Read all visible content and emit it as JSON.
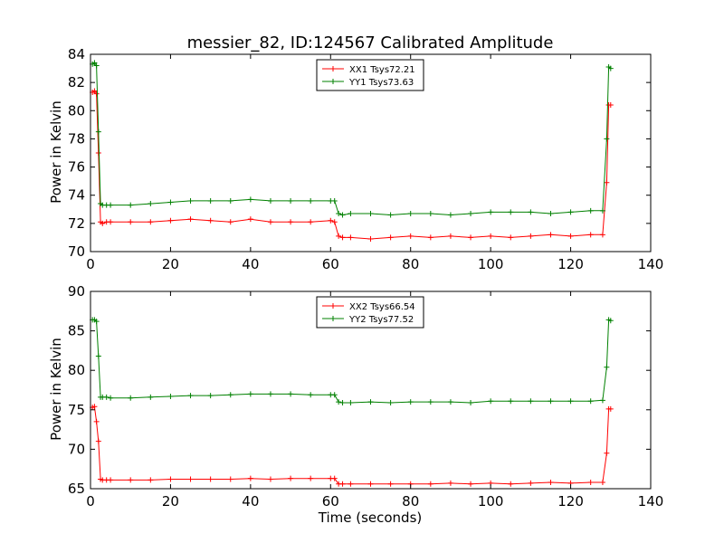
{
  "chart_data": [
    {
      "type": "line",
      "title": "messier_82, ID:124567 Calibrated Amplitude",
      "xlabel": "",
      "ylabel": "Power in Kelvin",
      "xlim": [
        0,
        140
      ],
      "ylim": [
        70,
        84
      ],
      "xticks": [
        0,
        20,
        40,
        60,
        80,
        100,
        120,
        140
      ],
      "yticks": [
        70,
        72,
        74,
        76,
        78,
        80,
        82,
        84
      ],
      "legend_position": "top-center",
      "series": [
        {
          "name": "XX1 Tsys72.21",
          "color": "#ff0000",
          "x": [
            0.5,
            1,
            1.5,
            2,
            2.5,
            3,
            4,
            5,
            10,
            15,
            20,
            25,
            30,
            35,
            40,
            45,
            50,
            55,
            60,
            61,
            62,
            63,
            65,
            70,
            75,
            80,
            85,
            90,
            95,
            100,
            105,
            110,
            115,
            120,
            125,
            128,
            129,
            129.5,
            130
          ],
          "y": [
            81.3,
            81.4,
            81.2,
            77.0,
            72.1,
            72.0,
            72.1,
            72.1,
            72.1,
            72.1,
            72.2,
            72.3,
            72.2,
            72.1,
            72.3,
            72.1,
            72.1,
            72.1,
            72.2,
            72.1,
            71.1,
            71.0,
            71.0,
            70.9,
            71.0,
            71.1,
            71.0,
            71.1,
            71.0,
            71.1,
            71.0,
            71.1,
            71.2,
            71.1,
            71.2,
            71.2,
            74.9,
            80.4,
            80.4
          ]
        },
        {
          "name": "YY1 Tsys73.63",
          "color": "#008000",
          "x": [
            0.5,
            1,
            1.5,
            2,
            2.5,
            3,
            4,
            5,
            10,
            15,
            20,
            25,
            30,
            35,
            40,
            45,
            50,
            55,
            60,
            61,
            62,
            63,
            65,
            70,
            75,
            80,
            85,
            90,
            95,
            100,
            105,
            110,
            115,
            120,
            125,
            128,
            129,
            129.5,
            130
          ],
          "y": [
            83.3,
            83.4,
            83.2,
            78.5,
            73.4,
            73.3,
            73.3,
            73.3,
            73.3,
            73.4,
            73.5,
            73.6,
            73.6,
            73.6,
            73.7,
            73.6,
            73.6,
            73.6,
            73.6,
            73.6,
            72.7,
            72.6,
            72.7,
            72.7,
            72.6,
            72.7,
            72.7,
            72.6,
            72.7,
            72.8,
            72.8,
            72.8,
            72.7,
            72.8,
            72.9,
            72.9,
            78.0,
            83.1,
            83.0
          ]
        }
      ]
    },
    {
      "type": "line",
      "title": "",
      "xlabel": "Time (seconds)",
      "ylabel": "Power in Kelvin",
      "xlim": [
        0,
        140
      ],
      "ylim": [
        65,
        90
      ],
      "xticks": [
        0,
        20,
        40,
        60,
        80,
        100,
        120,
        140
      ],
      "yticks": [
        65,
        70,
        75,
        80,
        85,
        90
      ],
      "legend_position": "top-center",
      "series": [
        {
          "name": "XX2 Tsys66.54",
          "color": "#ff0000",
          "x": [
            0.5,
            1,
            1.5,
            2,
            2.5,
            3,
            4,
            5,
            10,
            15,
            20,
            25,
            30,
            35,
            40,
            45,
            50,
            55,
            60,
            61,
            62,
            63,
            65,
            70,
            75,
            80,
            85,
            90,
            95,
            100,
            105,
            110,
            115,
            120,
            125,
            128,
            129,
            129.5,
            130
          ],
          "y": [
            75.3,
            75.4,
            73.5,
            71.0,
            66.2,
            66.1,
            66.1,
            66.1,
            66.1,
            66.1,
            66.2,
            66.2,
            66.2,
            66.2,
            66.3,
            66.2,
            66.3,
            66.3,
            66.3,
            66.3,
            65.6,
            65.6,
            65.6,
            65.6,
            65.6,
            65.6,
            65.6,
            65.7,
            65.6,
            65.7,
            65.6,
            65.7,
            65.8,
            65.7,
            65.8,
            65.8,
            69.5,
            75.1,
            75.1
          ]
        },
        {
          "name": "YY2 Tsys77.52",
          "color": "#008000",
          "x": [
            0.5,
            1,
            1.5,
            2,
            2.5,
            3,
            4,
            5,
            10,
            15,
            20,
            25,
            30,
            35,
            40,
            45,
            50,
            55,
            60,
            61,
            62,
            63,
            65,
            70,
            75,
            80,
            85,
            90,
            95,
            100,
            105,
            110,
            115,
            120,
            125,
            128,
            129,
            129.5,
            130
          ],
          "y": [
            86.4,
            86.4,
            86.2,
            81.8,
            76.6,
            76.6,
            76.6,
            76.5,
            76.5,
            76.6,
            76.7,
            76.8,
            76.8,
            76.9,
            77.0,
            77.0,
            77.0,
            76.9,
            76.9,
            76.9,
            76.0,
            75.9,
            75.9,
            76.0,
            75.9,
            76.0,
            76.0,
            76.0,
            75.9,
            76.1,
            76.1,
            76.1,
            76.1,
            76.1,
            76.1,
            76.2,
            80.4,
            86.4,
            86.3
          ]
        }
      ]
    }
  ]
}
